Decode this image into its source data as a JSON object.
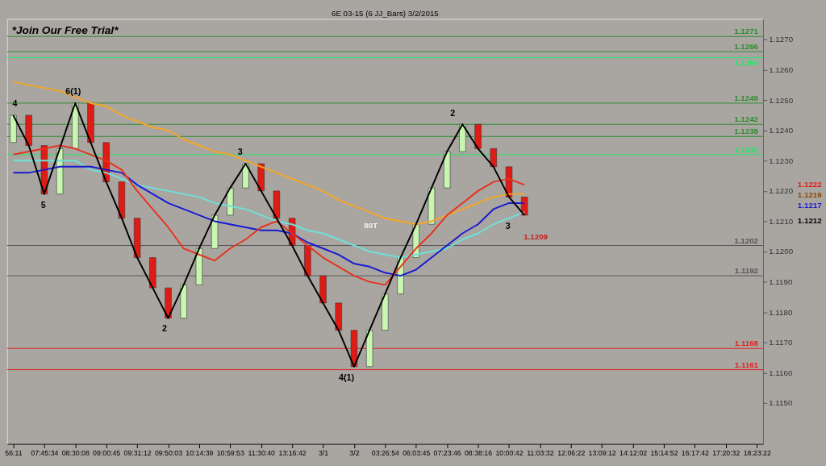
{
  "chart_data": {
    "type": "candlestick",
    "title": "6E 03-15 (6 JJ_Bars) 3/2/2015",
    "categories": [
      "56:11",
      null,
      "07:45:34",
      null,
      "08:30:08",
      null,
      "09:00:45",
      null,
      "09:31:12",
      null,
      "09:50:03",
      null,
      "10:14:39",
      null,
      "10:59:53",
      null,
      "11:30:40",
      null,
      "13:16:42",
      null,
      "3/1",
      null,
      "3/2",
      null,
      "03:26:54",
      null,
      "06:03:45",
      null,
      "07:23:46",
      null,
      "08:38:16",
      null,
      "10:00:42",
      null,
      "11:03:32",
      null,
      "12:06:22",
      null,
      "13:09:12",
      null,
      "14:12:02",
      null,
      "15:14:52",
      null,
      "16:17:42",
      null,
      "17:20:32",
      null,
      "18:23:22"
    ],
    "ohlc": [
      [
        1.1236,
        1.1245,
        1.1236,
        1.1245
      ],
      [
        1.1245,
        1.1245,
        1.1235,
        1.1235
      ],
      [
        1.1235,
        1.1235,
        1.1219,
        1.1219
      ],
      [
        1.1219,
        1.1234,
        1.1219,
        1.1234
      ],
      [
        1.1234,
        1.1249,
        1.1234,
        1.1249
      ],
      [
        1.1249,
        1.1249,
        1.1236,
        1.1236
      ],
      [
        1.1236,
        1.1236,
        1.1223,
        1.1223
      ],
      [
        1.1223,
        1.1223,
        1.1211,
        1.1211
      ],
      [
        1.1211,
        1.1211,
        1.1198,
        1.1198
      ],
      [
        1.1198,
        1.1198,
        1.1188,
        1.1188
      ],
      [
        1.1188,
        1.1188,
        1.1178,
        1.1178
      ],
      [
        1.1178,
        1.1189,
        1.1178,
        1.1189
      ],
      [
        1.1189,
        1.1201,
        1.1189,
        1.1201
      ],
      [
        1.1201,
        1.1212,
        1.1201,
        1.1212
      ],
      [
        1.1212,
        1.1221,
        1.1212,
        1.1221
      ],
      [
        1.1221,
        1.1229,
        1.1221,
        1.1229
      ],
      [
        1.1229,
        1.1229,
        1.122,
        1.122
      ],
      [
        1.122,
        1.122,
        1.1211,
        1.1211
      ],
      [
        1.1211,
        1.1211,
        1.1202,
        1.1202
      ],
      [
        1.1202,
        1.1202,
        1.1192,
        1.1192
      ],
      [
        1.1192,
        1.1192,
        1.1183,
        1.1183
      ],
      [
        1.1183,
        1.1183,
        1.1174,
        1.1174
      ],
      [
        1.1174,
        1.1174,
        1.1162,
        1.1162
      ],
      [
        1.1162,
        1.1174,
        1.1162,
        1.1174
      ],
      [
        1.1174,
        1.1186,
        1.1174,
        1.1186
      ],
      [
        1.1186,
        1.1198,
        1.1186,
        1.1198
      ],
      [
        1.1198,
        1.1209,
        1.1198,
        1.1209
      ],
      [
        1.1209,
        1.1221,
        1.1209,
        1.1221
      ],
      [
        1.1221,
        1.1233,
        1.1221,
        1.1233
      ],
      [
        1.1233,
        1.1242,
        1.1233,
        1.1242
      ],
      [
        1.1242,
        1.1242,
        1.1234,
        1.1234
      ],
      [
        1.1234,
        1.1234,
        1.1228,
        1.1228
      ],
      [
        1.1228,
        1.1228,
        1.1218,
        1.1218
      ],
      [
        1.1218,
        1.1218,
        1.1212,
        1.1212
      ],
      null,
      null,
      null,
      null,
      null,
      null,
      null,
      null,
      null,
      null,
      null,
      null,
      null,
      null,
      null
    ],
    "series": [
      {
        "type": "line",
        "color": "#f5a623",
        "values": [
          1.1256,
          1.1255,
          1.1254,
          1.1253,
          1.1251,
          1.1249,
          1.1248,
          1.1245,
          1.1243,
          1.1241,
          1.124,
          1.1237,
          1.1235,
          1.1233,
          1.1232,
          1.123,
          1.1228,
          1.1226,
          1.1224,
          1.1222,
          1.122,
          1.1217,
          1.1215,
          1.1213,
          1.1211,
          1.121,
          1.1209,
          1.121,
          1.1212,
          1.1214,
          1.1216,
          1.1218,
          1.1219,
          1.1219,
          null,
          null,
          null,
          null,
          null,
          null,
          null,
          null,
          null,
          null,
          null,
          null,
          null,
          null,
          null
        ]
      },
      {
        "type": "line",
        "color": "#6fe0d8",
        "values": [
          1.123,
          1.123,
          1.123,
          1.123,
          1.123,
          1.1227,
          1.1226,
          1.1224,
          1.1222,
          1.1221,
          1.122,
          1.1219,
          1.1218,
          1.1216,
          1.1215,
          1.1214,
          1.1212,
          1.121,
          1.1209,
          1.1207,
          1.1206,
          1.1204,
          1.1202,
          1.12,
          1.1199,
          1.1198,
          1.1199,
          1.12,
          1.1201,
          1.1204,
          1.1206,
          1.1209,
          1.1211,
          1.1213,
          null,
          null,
          null,
          null,
          null,
          null,
          null,
          null,
          null,
          null,
          null,
          null,
          null,
          null,
          null
        ]
      },
      {
        "type": "line",
        "color": "#1a1ad0",
        "values": [
          1.1226,
          1.1226,
          1.1227,
          1.1228,
          1.1228,
          1.1228,
          1.1227,
          1.1226,
          1.1222,
          1.1219,
          1.1216,
          1.1214,
          1.1212,
          1.121,
          1.1209,
          1.1208,
          1.1207,
          1.1207,
          1.1206,
          1.1203,
          1.1201,
          1.1199,
          1.1196,
          1.1195,
          1.1193,
          1.1192,
          1.1194,
          1.1198,
          1.1202,
          1.1206,
          1.1209,
          1.1214,
          1.1216,
          1.1216,
          null,
          null,
          null,
          null,
          null,
          null,
          null,
          null,
          null,
          null,
          null,
          null,
          null,
          null,
          null
        ]
      },
      {
        "type": "line",
        "color": "#e8321e",
        "values": [
          1.1232,
          1.1233,
          1.1234,
          1.1235,
          1.1234,
          1.1232,
          1.123,
          1.1227,
          1.122,
          1.1214,
          1.1208,
          1.1201,
          1.1199,
          1.1197,
          1.1201,
          1.1204,
          1.1208,
          1.121,
          1.1206,
          1.1202,
          1.1198,
          1.1195,
          1.1192,
          1.119,
          1.1189,
          1.1195,
          1.1201,
          1.1206,
          1.1212,
          1.1216,
          1.122,
          1.1223,
          1.1224,
          1.1222,
          null,
          null,
          null,
          null,
          null,
          null,
          null,
          null,
          null,
          null,
          null,
          null,
          null,
          null,
          null
        ]
      },
      {
        "type": "line",
        "color": "#000000",
        "values": [
          1.1245,
          1.1235,
          1.1219,
          1.1234,
          1.1249,
          1.1236,
          1.1223,
          1.1211,
          1.1198,
          1.1188,
          1.1178,
          1.1189,
          1.1201,
          1.1212,
          1.1221,
          1.1229,
          1.122,
          1.1211,
          1.1202,
          1.1192,
          1.1183,
          1.1174,
          1.1162,
          1.1174,
          1.1186,
          1.1198,
          1.1209,
          1.1221,
          1.1233,
          1.1242,
          1.1234,
          1.1228,
          1.1218,
          1.1212,
          null,
          null,
          null,
          null,
          null,
          null,
          null,
          null,
          null,
          null,
          null,
          null,
          null,
          null,
          null
        ]
      }
    ],
    "ylim": [
      1.11365,
      1.12768
    ],
    "yticks": [
      {
        "value": 1.115,
        "label": "1.1150"
      },
      {
        "value": 1.116,
        "label": "1.1160"
      },
      {
        "value": 1.117,
        "label": "1.1170"
      },
      {
        "value": 1.118,
        "label": "1.1180"
      },
      {
        "value": 1.119,
        "label": "1.1190"
      },
      {
        "value": 1.12,
        "label": "1.1200"
      },
      {
        "value": 1.121,
        "label": "1.1210"
      },
      {
        "value": 1.122,
        "label": "1.1220"
      },
      {
        "value": 1.123,
        "label": "1.1230"
      },
      {
        "value": 1.124,
        "label": "1.1240"
      },
      {
        "value": 1.125,
        "label": "1.1250"
      },
      {
        "value": 1.126,
        "label": "1.1260"
      },
      {
        "value": 1.127,
        "label": "1.1270"
      }
    ],
    "ref_lines": [
      {
        "axis": "y",
        "value": 1.1271,
        "label": "1.1271",
        "color": "#2e8b2e"
      },
      {
        "axis": "y",
        "value": 1.1266,
        "label": "1.1266",
        "color": "#2e8b2e"
      },
      {
        "axis": "y",
        "value": 1.1264,
        "label": "1.1264",
        "color": "#22e86a"
      },
      {
        "axis": "y",
        "value": 1.1249,
        "label": "1.1249",
        "color": "#2e8b2e"
      },
      {
        "axis": "y",
        "value": 1.1242,
        "label": "1.1242",
        "color": "#2e8b2e"
      },
      {
        "axis": "y",
        "value": 1.1238,
        "label": "1.1238",
        "color": "#2e8b2e"
      },
      {
        "axis": "y",
        "value": 1.1232,
        "label": "1.1232",
        "color": "#22e86a"
      },
      {
        "axis": "y",
        "value": 1.1202,
        "label": "1.1202",
        "color": "#555555"
      },
      {
        "axis": "y",
        "value": 1.1192,
        "label": "1.1192",
        "color": "#555555"
      },
      {
        "axis": "y",
        "value": 1.1168,
        "label": "1.1168",
        "color": "#e02020"
      },
      {
        "axis": "y",
        "value": 1.1161,
        "label": "1.1161",
        "color": "#e02020"
      }
    ],
    "annotations": [
      "*Join Our Free Trial*",
      "4",
      "5",
      "6(1)",
      "2",
      "3",
      "4(1)",
      "2",
      "3",
      "80T",
      "1.1209",
      "1.1222",
      "1.1219",
      "1.1217",
      "1.1212"
    ]
  }
}
